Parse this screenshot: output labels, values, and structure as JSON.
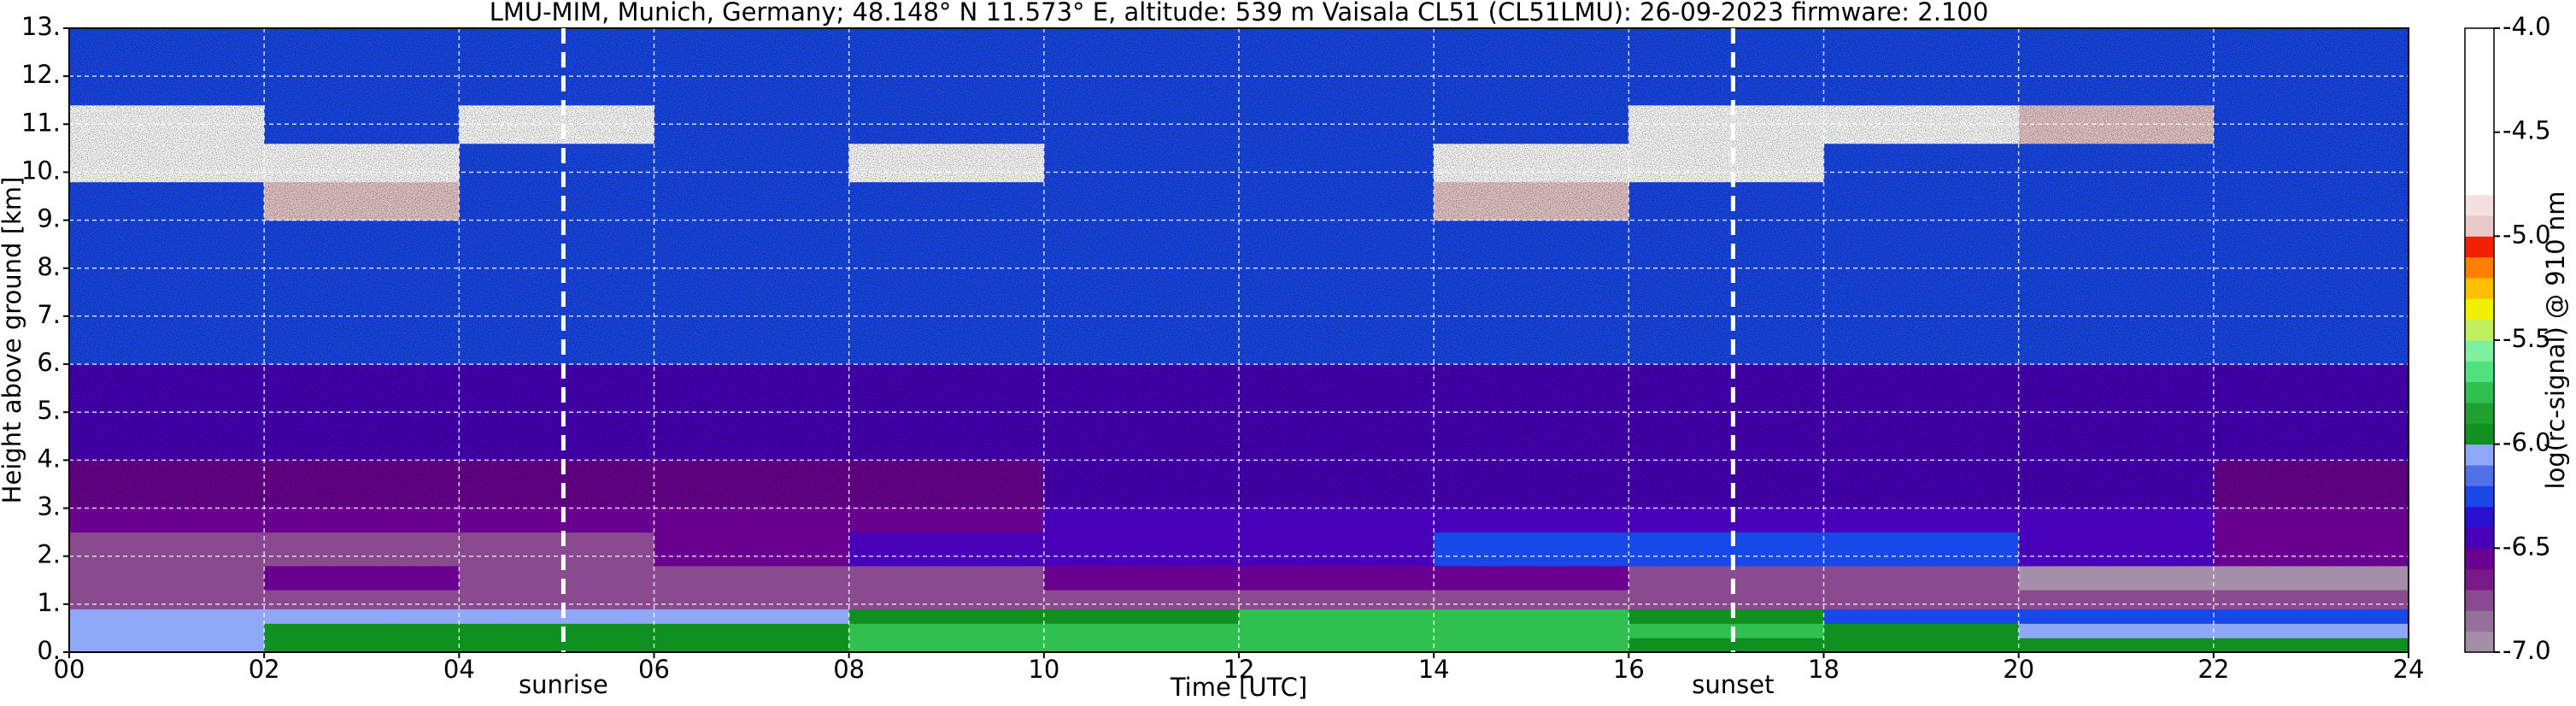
{
  "chart_data": {
    "type": "heatmap",
    "title": "LMU-MIM, Munich, Germany; 48.148° N 11.573° E, altitude: 539 m    Vaisala CL51 (CL51LMU): 26-09-2023    firmware: 2.100",
    "x_label": "Time [UTC]",
    "y_label": "Height above ground [km]",
    "colorbar_label": "log(rc-signal) @ 910 nm",
    "xlim": [
      0,
      24
    ],
    "ylim": [
      0,
      13
    ],
    "clim": [
      -7,
      -4
    ],
    "xticks": [
      {
        "value": 0,
        "label": "00"
      },
      {
        "value": 2,
        "label": "02"
      },
      {
        "value": 4,
        "label": "04"
      },
      {
        "value": 6,
        "label": "06"
      },
      {
        "value": 8,
        "label": "08"
      },
      10,
      12,
      14,
      16,
      18,
      20,
      22,
      24
    ],
    "yticks": [
      {
        "value": 0,
        "label": "0."
      },
      {
        "value": 1,
        "label": "1."
      },
      {
        "value": 2,
        "label": "2."
      },
      {
        "value": 3,
        "label": "3."
      },
      {
        "value": 4,
        "label": "4."
      },
      {
        "value": 5,
        "label": "5."
      },
      {
        "value": 6,
        "label": "6."
      },
      {
        "value": 7,
        "label": "7."
      },
      {
        "value": 8,
        "label": "8."
      },
      {
        "value": 9,
        "label": "9."
      },
      {
        "value": 10,
        "label": "10."
      },
      {
        "value": 11,
        "label": "11."
      },
      {
        "value": 12,
        "label": "12."
      },
      {
        "value": 13,
        "label": "13."
      }
    ],
    "cticks": [
      {
        "value": -7,
        "label": "-7.0"
      },
      {
        "value": -6.5,
        "label": "-6.5"
      },
      {
        "value": -6,
        "label": "-6.0"
      },
      {
        "value": -5.5,
        "label": "-5.5"
      },
      {
        "value": -5,
        "label": "-5.0"
      },
      {
        "value": -4.5,
        "label": "-4.5"
      },
      {
        "value": -4,
        "label": "-4.0"
      }
    ],
    "grid": true,
    "colormap": [
      "#a48ea8",
      "#96709a",
      "#8a4a90",
      "#7a1a88",
      "#6a0090",
      "#4800b8",
      "#2a10d0",
      "#1848e8",
      "#5070e8",
      "#90a8f8",
      "#109020",
      "#20a030",
      "#30c050",
      "#50e080",
      "#80f0a0",
      "#c0f060",
      "#f0f000",
      "#ffc000",
      "#ff8000",
      "#f02000",
      "#e8c8c8",
      "#f4e0e0",
      "#ffffff",
      "#ffffff",
      "#ffffff",
      "#ffffff",
      "#ffffff",
      "#ffffff",
      "#ffffff",
      "#ffffff"
    ],
    "x_edges": [
      0,
      2,
      4,
      6,
      8,
      10,
      12,
      14,
      16,
      18,
      20,
      22,
      24
    ],
    "y_edges": [
      0,
      0.3,
      0.6,
      0.9,
      1.3,
      1.8,
      2.5,
      4,
      6,
      9,
      9.8,
      10.6,
      11.4,
      13
    ],
    "z": [
      [
        -6.1,
        -6.0,
        -6.0,
        -5.9,
        -5.8,
        -5.8,
        -5.7,
        -5.7,
        -5.9,
        -6.0,
        -6.0,
        -6.0
      ],
      [
        -6.1,
        -6.0,
        -5.9,
        -5.9,
        -5.8,
        -5.7,
        -5.7,
        -5.7,
        -5.8,
        -6.0,
        -6.1,
        -6.1
      ],
      [
        -6.1,
        -6.1,
        -6.1,
        -6.1,
        -6.0,
        -5.9,
        -5.8,
        -5.8,
        -6.0,
        -6.3,
        -6.3,
        -6.3
      ],
      [
        -6.8,
        -6.8,
        -6.8,
        -6.8,
        -6.8,
        -6.7,
        -6.7,
        -6.7,
        -6.7,
        -6.7,
        -6.8,
        -6.8
      ],
      [
        -6.7,
        -6.6,
        -6.7,
        -6.8,
        -6.8,
        -6.6,
        -6.6,
        -6.6,
        -6.7,
        -6.8,
        -6.9,
        -6.9
      ],
      [
        -6.7,
        -6.7,
        -6.7,
        -6.6,
        -6.5,
        -6.4,
        -6.4,
        -6.3,
        -6.3,
        -6.3,
        -6.4,
        -6.6
      ],
      [
        -6.6,
        -6.6,
        -6.6,
        -6.6,
        -6.6,
        -6.5,
        -6.5,
        -6.5,
        -6.5,
        -6.4,
        -6.5,
        -6.6
      ],
      [
        -6.5,
        -6.5,
        -6.5,
        -6.5,
        -6.5,
        -6.5,
        -6.5,
        -6.5,
        -6.5,
        -6.5,
        -6.5,
        -6.5
      ],
      [
        -6.3,
        -6.3,
        -6.3,
        -6.3,
        -6.3,
        -6.3,
        -6.3,
        -6.3,
        -6.3,
        -6.3,
        -6.3,
        -6.3
      ],
      [
        -6.2,
        -5.0,
        -6.2,
        -6.2,
        -6.2,
        -6.2,
        -6.2,
        -4.9,
        -6.2,
        -6.2,
        -6.2,
        -6.2
      ],
      [
        -4.5,
        -4.2,
        -6.2,
        -6.2,
        -4.8,
        -6.2,
        -6.2,
        -4.2,
        -4.4,
        -6.2,
        -6.2,
        -6.2
      ],
      [
        -4.3,
        -6.2,
        -4.6,
        -6.2,
        -6.2,
        -6.2,
        -6.2,
        -6.2,
        -4.5,
        -4.8,
        -4.9,
        -6.2
      ],
      [
        -6.2,
        -6.2,
        -6.2,
        -6.2,
        -6.2,
        -6.2,
        -6.2,
        -6.2,
        -6.2,
        -6.2,
        -6.2,
        -6.2
      ]
    ],
    "annotations": [
      {
        "text": "sunrise",
        "x": 5.07
      },
      {
        "text": "sunset",
        "x": 17.07
      }
    ]
  }
}
